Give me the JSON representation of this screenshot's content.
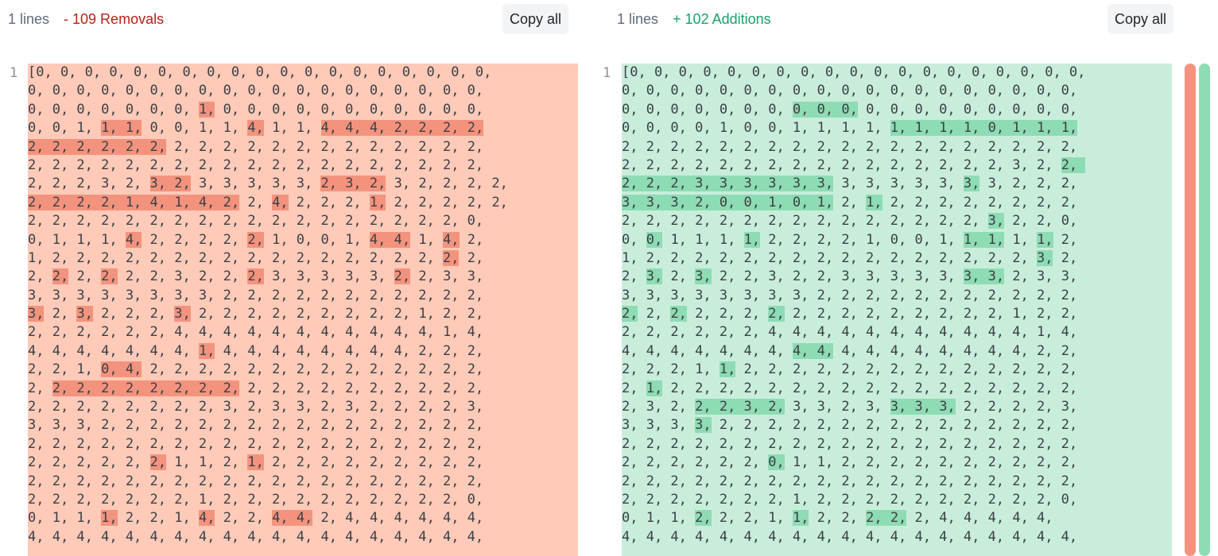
{
  "left": {
    "lines_label": "1 lines",
    "change_label": "- 109 Removals",
    "copy_label": "Copy all",
    "gutter": "1",
    "rows": [
      [
        [
          "[0, 0, 0, 0, 0, 0, 0, 0, 0, 0, 0, 0, 0, 0, 0, 0, 0, 0, 0,",
          0
        ]
      ],
      [
        [
          "0, 0, 0, 0, 0, 0, 0, 0, 0, 0, 0, 0, 0, 0, 0, 0, 0, 0, 0,",
          0
        ]
      ],
      [
        [
          "0, 0, 0, 0, 0, 0, 0, ",
          0
        ],
        [
          "1,",
          1
        ],
        [
          " 0, 0, 0, 0, 0, 0, 0, 0, 0, 0, 0,",
          0
        ]
      ],
      [
        [
          "0, 0, 1, ",
          0
        ],
        [
          "1, 1,",
          1
        ],
        [
          " 0, 0, 1, 1, ",
          0
        ],
        [
          "4,",
          1
        ],
        [
          " 1, 1, ",
          0
        ],
        [
          "4, 4, 4, 2, 2, 2, 2,",
          1
        ]
      ],
      [
        [
          "2, 2, 2, 2, 2, 2,",
          1
        ],
        [
          " 2, 2, 2, 2, 2, 2, 2, 2, 2, 2, 2, 2, 2,",
          0
        ]
      ],
      [
        [
          "2, 2, 2, 2, 2, 2, 2, 2, 2, 2, 2, 2, 2, 2, 2, 2, 2, 2, 2,",
          0
        ]
      ],
      [
        [
          "2, 2, 2, 3, 2, ",
          0
        ],
        [
          "3, 2,",
          1
        ],
        [
          " 3, 3, 3, 3, 3, ",
          0
        ],
        [
          "2, 3, 2,",
          1
        ],
        [
          " 3, 2, 2, 2, 2,",
          0
        ]
      ],
      [
        [
          "2, 2, 2, 2, 1, 4, 1, 4, 2,",
          1
        ],
        [
          " 2, ",
          0
        ],
        [
          "4,",
          1
        ],
        [
          " 2, 2, 2, ",
          0
        ],
        [
          "1,",
          1
        ],
        [
          " 2, 2, 2, 2, 2,",
          0
        ]
      ],
      [
        [
          "2, 2, 2, 2, 2, 2, 2, 2, 2, 2, 2, 2, 2, 2, 2, 2, 2, 2, 0,",
          0
        ]
      ],
      [
        [
          "0, 1, 1, 1, ",
          0
        ],
        [
          "4,",
          1
        ],
        [
          " 2, 2, 2, 2, ",
          0
        ],
        [
          "2,",
          1
        ],
        [
          " 1, 0, 0, 1, ",
          0
        ],
        [
          "4, 4,",
          1
        ],
        [
          " 1, ",
          0
        ],
        [
          "4,",
          1
        ],
        [
          " 2,",
          0
        ]
      ],
      [
        [
          "1, 2, 2, 2, 2, 2, 2, 2, 2, 2, 2, 2, 2, 2, 2, 2, 2, ",
          0
        ],
        [
          "2,",
          1
        ],
        [
          " 2,",
          0
        ]
      ],
      [
        [
          "2, ",
          0
        ],
        [
          "2,",
          1
        ],
        [
          " 2, ",
          0
        ],
        [
          "2,",
          1
        ],
        [
          " 2, 2, 3, 2, 2, ",
          0
        ],
        [
          "2,",
          1
        ],
        [
          " 3, 3, 3, 3, 3, ",
          0
        ],
        [
          "2,",
          1
        ],
        [
          " 2, 3, 3,",
          0
        ]
      ],
      [
        [
          "3, 3, 3, 3, 3, 3, 3, 3, 2, 2, 2, 2, 2, 2, 2, 2, 2, 2, 2,",
          0
        ]
      ],
      [
        [
          "3,",
          1
        ],
        [
          " 2, ",
          0
        ],
        [
          "3,",
          1
        ],
        [
          " 2, 2, 2, ",
          0
        ],
        [
          "3,",
          1
        ],
        [
          " 2, 2, 2, 2, 2, 2, 2, 2, 2, 1, 2, 2,",
          0
        ]
      ],
      [
        [
          "2, 2, 2, 2, 2, 2, 4, 4, 4, 4, 4, 4, 4, 4, 4, 4, 4, 1, 4,",
          0
        ]
      ],
      [
        [
          "4, 4, 4, 4, 4, 4, 4, ",
          0
        ],
        [
          "1,",
          1
        ],
        [
          " 4, 4, 4, 4, 4, 4, 4, 4, 2, 2, 2,",
          0
        ]
      ],
      [
        [
          "2, 2, 1, ",
          0
        ],
        [
          "0, 4,",
          1
        ],
        [
          " 2, 2, 2, 2, 2, 2, 2, 2, 2, 2, 2, 2, 2, 2,",
          0
        ]
      ],
      [
        [
          "2, ",
          0
        ],
        [
          "2, 2, 2, 2, 2, 2, 2, 2,",
          1
        ],
        [
          " 2, 2, 2, 2, 2, 2, 2, 2, 2, 2,",
          0
        ]
      ],
      [
        [
          "2, 2, 2, 2, 2, 2, 2, 2, 3, 2, 3, 3, 2, 3, 2, 2, 2, 2, 3,",
          0
        ]
      ],
      [
        [
          "3, 3, 3, 2, 2, 2, 2, 2, 2, 2, 2, 2, 2, 2, 2, 2, 2, 2, 2,",
          0
        ]
      ],
      [
        [
          "2, 2, 2, 2, 2, 2, 2, 2, 2, 2, 2, 2, 2, 2, 2, 2, 2, 2, 2,",
          0
        ]
      ],
      [
        [
          "2, 2, 2, 2, 2, ",
          0
        ],
        [
          "2,",
          1
        ],
        [
          " 1, 1, 2, ",
          0
        ],
        [
          "1,",
          1
        ],
        [
          " 2, 2, 2, 2, 2, 2, 2, 2, 2,",
          0
        ]
      ],
      [
        [
          "2, 2, 2, 2, 2, 2, 2, 2, 2, 2, 2, 2, 2, 2, 2, 2, 2, 2, 2,",
          0
        ]
      ],
      [
        [
          "2, 2, 2, 2, 2, 2, 2, 1, 2, 2, 2, 2, 2, 2, 2, 2, 2, 2, 0,",
          0
        ]
      ],
      [
        [
          "0, 1, 1, ",
          0
        ],
        [
          "1,",
          1
        ],
        [
          " 2, 2, 1, ",
          0
        ],
        [
          "4,",
          1
        ],
        [
          " 2, 2, ",
          0
        ],
        [
          "4, 4,",
          1
        ],
        [
          " 2, 4, 4, 4, 4, 4, 4,",
          0
        ]
      ],
      [
        [
          "4, 4, 4, 4, 4, 4, 4, 4, 4, 4, 4, 4, 4, 4, 4, 4, 4, 4, 4,",
          0
        ]
      ]
    ]
  },
  "right": {
    "lines_label": "1 lines",
    "change_label": "+ 102 Additions",
    "copy_label": "Copy all",
    "gutter": "1",
    "rows": [
      [
        [
          "[0, 0, 0, 0, 0, 0, 0, 0, 0, 0, 0, 0, 0, 0, 0, 0, 0, 0, 0,",
          0
        ]
      ],
      [
        [
          "0, 0, 0, 0, 0, 0, 0, 0, 0, 0, 0, 0, 0, 0, 0, 0, 0, 0, 0,",
          0
        ]
      ],
      [
        [
          "0, 0, 0, 0, 0, 0, 0, ",
          0
        ],
        [
          "0, 0, 0,",
          1
        ],
        [
          " 0, 0, 0, 0, 0, 0, 0, 0, 0,",
          0
        ]
      ],
      [
        [
          "0, 0, 0, 0, 1, 0, 0, 1, 1, 1, 1, ",
          0
        ],
        [
          "1, 1, 1, 1, 0, 1, 1, 1,",
          1
        ]
      ],
      [
        [
          "2, 2, 2, 2, 2, 2, 2, 2, 2, 2, 2, 2, 2, 2, 2, 2, 2, 2, 2,",
          0
        ]
      ],
      [
        [
          "2, 2, 2, 2, 2, 2, 2, 2, 2, 2, 2, 2, 2, 2, 2, 2, 3, 2, ",
          0
        ],
        [
          "2, ",
          1
        ]
      ],
      [
        [
          "2, 2, 2, 3, 3, 3, 3, 3, 3,",
          1
        ],
        [
          " 3, 3, 3, 3, 3, ",
          0
        ],
        [
          "3,",
          1
        ],
        [
          " 3, 2, 2, 2,",
          0
        ]
      ],
      [
        [
          "3, 3, 3, 2, 0, 0, 1, 0, 1,",
          1
        ],
        [
          " 2, ",
          0
        ],
        [
          "1,",
          1
        ],
        [
          " 2, 2, 2, 2, 2, 2, 2, 2,",
          0
        ]
      ],
      [
        [
          "2, 2, 2, 2, 2, 2, 2, 2, 2, 2, 2, 2, 2, 2, 2, ",
          0
        ],
        [
          "3,",
          1
        ],
        [
          " 2, 2, 0,",
          0
        ]
      ],
      [
        [
          "0, ",
          0
        ],
        [
          "0,",
          1
        ],
        [
          " 1, 1, 1, ",
          0
        ],
        [
          "1,",
          1
        ],
        [
          " 2, 2, 2, 2, 1, 0, 0, 1, ",
          0
        ],
        [
          "1, 1,",
          1
        ],
        [
          " 1, ",
          0
        ],
        [
          "1,",
          1
        ],
        [
          " 2,",
          0
        ]
      ],
      [
        [
          "1, 2, 2, 2, 2, 2, 2, 2, 2, 2, 2, 2, 2, 2, 2, 2, 2, ",
          0
        ],
        [
          "3,",
          1
        ],
        [
          " 2,",
          0
        ]
      ],
      [
        [
          "2, ",
          0
        ],
        [
          "3,",
          1
        ],
        [
          " 2, ",
          0
        ],
        [
          "3,",
          1
        ],
        [
          " 2, 2, 3, 2, 2, 3, 3, 3, 3, 3, ",
          0
        ],
        [
          "3, 3,",
          1
        ],
        [
          " 2, 3, 3,",
          0
        ]
      ],
      [
        [
          "3, 3, 3, 3, 3, 3, 3, 3, 2, 2, 2, 2, 2, 2, 2, 2, 2, 2, 2,",
          0
        ]
      ],
      [
        [
          "2,",
          1
        ],
        [
          " 2, ",
          0
        ],
        [
          "2,",
          1
        ],
        [
          " 2, 2, 2, ",
          0
        ],
        [
          "2,",
          1
        ],
        [
          " 2, 2, 2, 2, 2, 2, 2, 2, 2, 1, 2, 2,",
          0
        ]
      ],
      [
        [
          "2, 2, 2, 2, 2, 2, 4, 4, 4, 4, 4, 4, 4, 4, 4, 4, 4, 1, 4,",
          0
        ]
      ],
      [
        [
          "4, 4, 4, 4, 4, 4, 4, ",
          0
        ],
        [
          "4, 4,",
          1
        ],
        [
          " 4, 4, 4, 4, 4, 4, 4, 4, 2, 2,",
          0
        ]
      ],
      [
        [
          "2, 2, 2, 1, ",
          0
        ],
        [
          "1,",
          1
        ],
        [
          " 2, 2, 2, 2, 2, 2, 2, 2, 2, 2, 2, 2, 2, 2,",
          0
        ]
      ],
      [
        [
          "2, ",
          0
        ],
        [
          "1,",
          1
        ],
        [
          " 2, 2, 2, 2, 2, 2, 2, 2, 2, 2, 2, 2, 2, 2, 2, 2, 2,",
          0
        ]
      ],
      [
        [
          "2, 3, 2, ",
          0
        ],
        [
          "2, 2, 3, 2,",
          1
        ],
        [
          " 3, 3, 2, 3, ",
          0
        ],
        [
          "3, 3, 3,",
          1
        ],
        [
          " 2, 2, 2, 2, 3,",
          0
        ]
      ],
      [
        [
          "3, 3, 3, ",
          0
        ],
        [
          "3,",
          1
        ],
        [
          " 2, 2, 2, 2, 2, 2, 2, 2, 2, 2, 2, 2, 2, 2, 2,",
          0
        ]
      ],
      [
        [
          "2, 2, 2, 2, 2, 2, 2, 2, 2, 2, 2, 2, 2, 2, 2, 2, 2, 2, 2,",
          0
        ]
      ],
      [
        [
          "2, 2, 2, 2, 2, 2, ",
          0
        ],
        [
          "0,",
          1
        ],
        [
          " 1, 1, 2, 2, 2, 2, 2, 2, 2, 2, 2, 2,",
          0
        ]
      ],
      [
        [
          "2, 2, 2, 2, 2, 2, 2, 2, 2, 2, 2, 2, 2, 2, 2, 2, 2, 2, 2,",
          0
        ]
      ],
      [
        [
          "2, 2, 2, 2, 2, 2, 2, 1, 2, 2, 2, 2, 2, 2, 2, 2, 2, 2, 0,",
          0
        ]
      ],
      [
        [
          "0, 1, 1, ",
          0
        ],
        [
          "2,",
          1
        ],
        [
          " 2, 2, 1, ",
          0
        ],
        [
          "1,",
          1
        ],
        [
          " 2, 2, ",
          0
        ],
        [
          "2, 2,",
          1
        ],
        [
          " 2, 4, 4, 4, 4, 4,",
          0
        ]
      ],
      [
        [
          "4, 4, 4, 4, 4, 4, 4, 4, 4, 4, 4, 4, 4, 4, 4, 4, 4, 4, 4,",
          0
        ]
      ]
    ]
  },
  "colors": {
    "removed_bg": "#ffcab8",
    "removed_hl": "#f4937d",
    "added_bg": "#c8eedb",
    "added_hl": "#8edcb4",
    "removed_text": "#b42318",
    "added_text": "#15a36a"
  }
}
